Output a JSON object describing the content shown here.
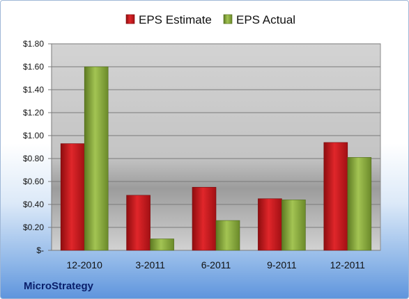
{
  "company": "MicroStrategy",
  "colors": {
    "estimate": "#c8151b",
    "actual": "#8aaa3c"
  },
  "chart_data": {
    "type": "bar",
    "categories": [
      "12-2010",
      "3-2011",
      "6-2011",
      "9-2011",
      "12-2011"
    ],
    "series": [
      {
        "name": "EPS Estimate",
        "values": [
          0.93,
          0.48,
          0.55,
          0.45,
          0.94
        ]
      },
      {
        "name": "EPS Actual",
        "values": [
          1.6,
          0.1,
          0.26,
          0.44,
          0.81
        ]
      }
    ],
    "ylim": [
      0,
      1.8
    ],
    "yticks": [
      0,
      0.2,
      0.4,
      0.6,
      0.8,
      1.0,
      1.2,
      1.4,
      1.6,
      1.8
    ],
    "ytick_labels": [
      "$-",
      "$0.20",
      "$0.40",
      "$0.60",
      "$0.80",
      "$1.00",
      "$1.20",
      "$1.40",
      "$1.60",
      "$1.80"
    ],
    "legend": "top",
    "grid": true
  }
}
